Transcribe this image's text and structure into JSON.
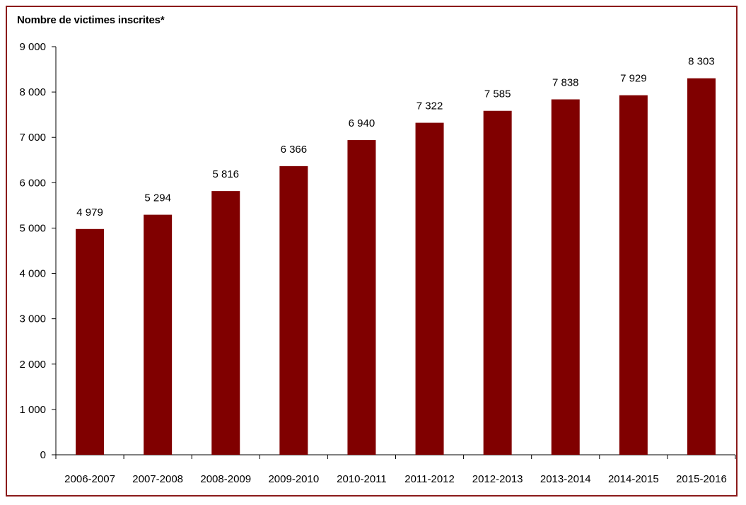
{
  "chart_data": {
    "type": "bar",
    "ylabel": "Nombre de victimes inscrites*",
    "xlabel": "",
    "categories": [
      "2006-2007",
      "2007-2008",
      "2008-2009",
      "2009-2010",
      "2010-2011",
      "2011-2012",
      "2012-2013",
      "2013-2014",
      "2014-2015",
      "2015-2016"
    ],
    "values": [
      4979,
      5294,
      5816,
      6366,
      6940,
      7322,
      7585,
      7838,
      7929,
      8303
    ],
    "data_labels": [
      "4 979",
      "5 294",
      "5 816",
      "6 366",
      "6 940",
      "7 322",
      "7 585",
      "7 838",
      "7 929",
      "8 303"
    ],
    "ylim": [
      0,
      9000
    ],
    "yticks": [
      0,
      1000,
      2000,
      3000,
      4000,
      5000,
      6000,
      7000,
      8000,
      9000
    ],
    "ytick_labels": [
      "0",
      "1 000",
      "2 000",
      "3 000",
      "4 000",
      "5 000",
      "6 000",
      "7 000",
      "8 000",
      "9 000"
    ],
    "grid": false,
    "legend": "none",
    "bar_color": "#800000",
    "frame_color": "#8b1a1a"
  }
}
